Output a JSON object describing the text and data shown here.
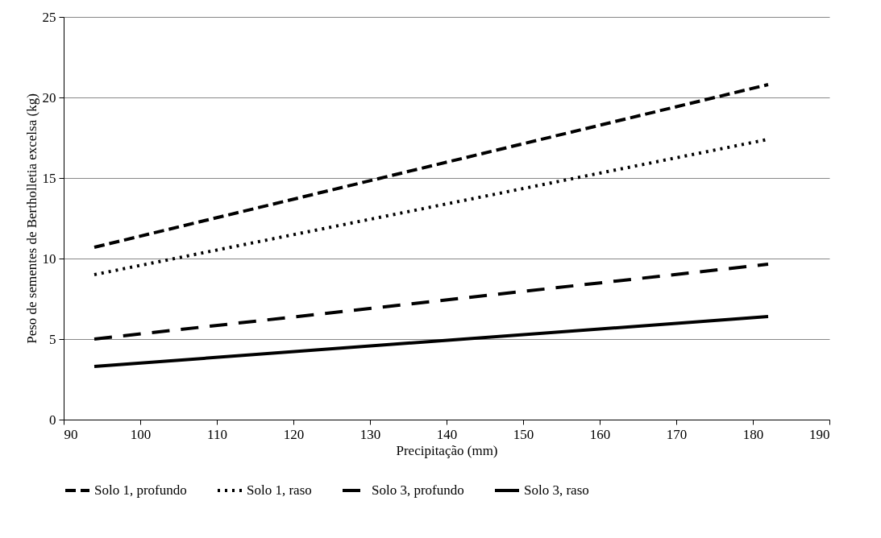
{
  "chart_data": {
    "type": "line",
    "xlabel": "Precipitação (mm)",
    "ylabel": "Peso de sementes de Bertholletia excelsa (kg)",
    "x": [
      94,
      182
    ],
    "xlim": [
      90,
      190
    ],
    "xticks": [
      90,
      100,
      110,
      120,
      130,
      140,
      150,
      160,
      170,
      180,
      190
    ],
    "ylim": [
      0,
      25
    ],
    "yticks": [
      0,
      5,
      10,
      15,
      20,
      25
    ],
    "grid": "y",
    "legend": "bottom",
    "marker": "none",
    "series": [
      {
        "name": "Solo 1, profundo",
        "color": "#000000",
        "line_style": "dashed",
        "values": [
          10.7,
          20.8
        ]
      },
      {
        "name": "Solo 1, raso",
        "color": "#000000",
        "line_style": "dotted",
        "values": [
          9.0,
          17.4
        ]
      },
      {
        "name": "Solo 3, profundo",
        "color": "#000000",
        "line_style": "dashed",
        "values": [
          5.0,
          9.65
        ]
      },
      {
        "name": "Solo 3, raso",
        "color": "#000000",
        "line_style": "solid",
        "values": [
          3.3,
          6.4
        ]
      }
    ]
  }
}
